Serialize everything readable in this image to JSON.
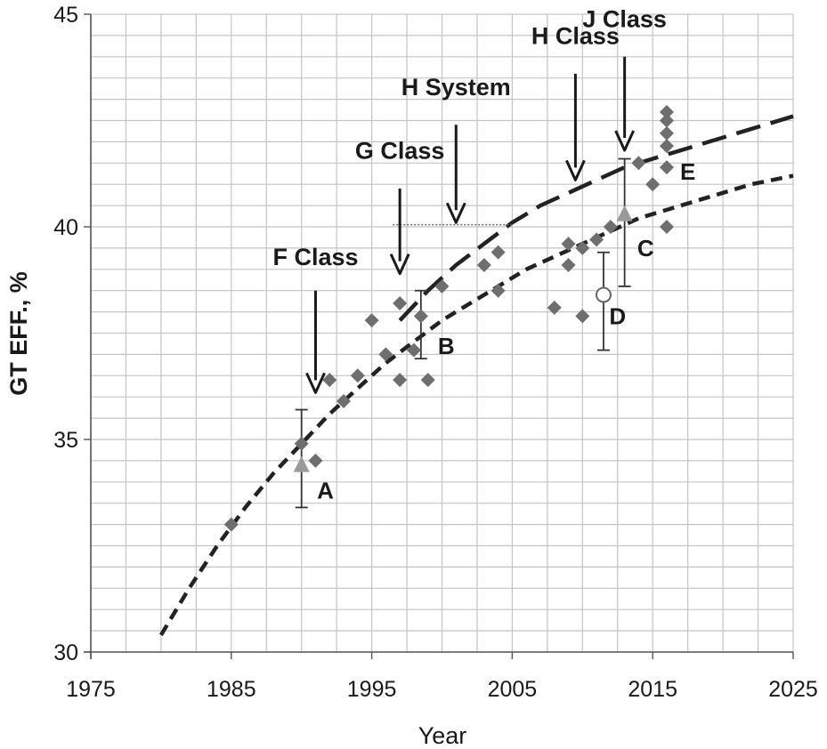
{
  "chart_data": {
    "type": "scatter",
    "xlabel": "Year",
    "ylabel": "GT EFF., %",
    "xlim": [
      1975,
      2025
    ],
    "ylim": [
      30,
      45
    ],
    "x_ticks": [
      "1975",
      "1985",
      "1995",
      "2005",
      "2015",
      "2025"
    ],
    "y_ticks": [
      "30",
      "35",
      "40",
      "45"
    ],
    "grid": true,
    "points": [
      [
        1985,
        33.0
      ],
      [
        1990,
        34.9
      ],
      [
        1991,
        34.5
      ],
      [
        1992,
        36.4
      ],
      [
        1993,
        35.9
      ],
      [
        1994,
        36.5
      ],
      [
        1995,
        37.8
      ],
      [
        1996,
        37.0
      ],
      [
        1997,
        38.2
      ],
      [
        1997,
        36.4
      ],
      [
        1998,
        37.1
      ],
      [
        1998.5,
        37.9
      ],
      [
        1999,
        36.4
      ],
      [
        2000,
        38.6
      ],
      [
        2003,
        39.1
      ],
      [
        2004,
        38.5
      ],
      [
        2004,
        39.4
      ],
      [
        2008,
        38.1
      ],
      [
        2009,
        39.6
      ],
      [
        2009,
        39.1
      ],
      [
        2010,
        39.5
      ],
      [
        2010,
        37.9
      ],
      [
        2011,
        39.7
      ],
      [
        2012,
        40.0
      ],
      [
        2014,
        41.5
      ],
      [
        2015,
        41.0
      ],
      [
        2016,
        42.7
      ],
      [
        2016,
        42.5
      ],
      [
        2016,
        42.2
      ],
      [
        2016,
        41.9
      ],
      [
        2016,
        41.4
      ],
      [
        2016,
        40.0
      ]
    ],
    "triangles": [
      [
        1990,
        34.4
      ],
      [
        2013,
        40.3
      ]
    ],
    "open_circle": [
      2011.5,
      38.4
    ],
    "error_bars": [
      {
        "x": 1990,
        "low": 33.4,
        "high": 35.7
      },
      {
        "x": 1998.5,
        "low": 36.9,
        "high": 38.5
      },
      {
        "x": 2011.5,
        "low": 37.1,
        "high": 39.4
      },
      {
        "x": 2013,
        "low": 38.6,
        "high": 41.6
      }
    ],
    "fit_lower": [
      [
        1980,
        30.4
      ],
      [
        1982,
        31.5
      ],
      [
        1984,
        32.5
      ],
      [
        1986,
        33.4
      ],
      [
        1988,
        34.2
      ],
      [
        1990,
        34.9
      ],
      [
        1992,
        35.6
      ],
      [
        1994,
        36.2
      ],
      [
        1996,
        36.8
      ],
      [
        1998,
        37.3
      ],
      [
        2000,
        37.8
      ],
      [
        2002,
        38.2
      ],
      [
        2004,
        38.6
      ],
      [
        2006,
        39.0
      ],
      [
        2008,
        39.3
      ],
      [
        2010,
        39.6
      ],
      [
        2012,
        39.9
      ],
      [
        2014,
        40.2
      ],
      [
        2016,
        40.4
      ],
      [
        2018,
        40.6
      ],
      [
        2020,
        40.8
      ],
      [
        2022,
        41.0
      ],
      [
        2025,
        41.2
      ]
    ],
    "fit_upper": [
      [
        1997,
        37.8
      ],
      [
        1999,
        38.5
      ],
      [
        2001,
        39.1
      ],
      [
        2003,
        39.6
      ],
      [
        2005,
        40.1
      ],
      [
        2007,
        40.5
      ],
      [
        2009,
        40.8
      ],
      [
        2011,
        41.1
      ],
      [
        2013,
        41.4
      ],
      [
        2015,
        41.6
      ],
      [
        2017,
        41.8
      ],
      [
        2019,
        42.0
      ],
      [
        2021,
        42.2
      ],
      [
        2023,
        42.4
      ],
      [
        2025,
        42.6
      ]
    ],
    "reference_line": {
      "x1": 1996.5,
      "x2": 2005,
      "y": 40.05
    },
    "annotations": [
      {
        "label": "F Class",
        "x": 1991,
        "arrow_top": 38.5,
        "arrow_bottom": 36.1,
        "text_y": 39.1
      },
      {
        "label": "G Class",
        "x": 1997,
        "arrow_top": 40.9,
        "arrow_bottom": 38.9,
        "text_y": 41.6
      },
      {
        "label": "H System",
        "x": 2001,
        "arrow_top": 42.4,
        "arrow_bottom": 40.1,
        "text_y": 43.1
      },
      {
        "label": "H Class",
        "x": 2009.5,
        "arrow_top": 43.6,
        "arrow_bottom": 41.1,
        "text_y": 44.3
      },
      {
        "label": "J Class",
        "x": 2013,
        "arrow_top": 44.0,
        "arrow_bottom": 41.8,
        "text_y": 44.7
      }
    ],
    "point_labels": [
      {
        "label": "A",
        "x": 1991.7,
        "y": 33.8
      },
      {
        "label": "B",
        "x": 2000.3,
        "y": 37.2
      },
      {
        "label": "C",
        "x": 2014.5,
        "y": 39.5
      },
      {
        "label": "D",
        "x": 2012.5,
        "y": 37.9
      },
      {
        "label": "E",
        "x": 2017.5,
        "y": 41.3
      }
    ]
  }
}
